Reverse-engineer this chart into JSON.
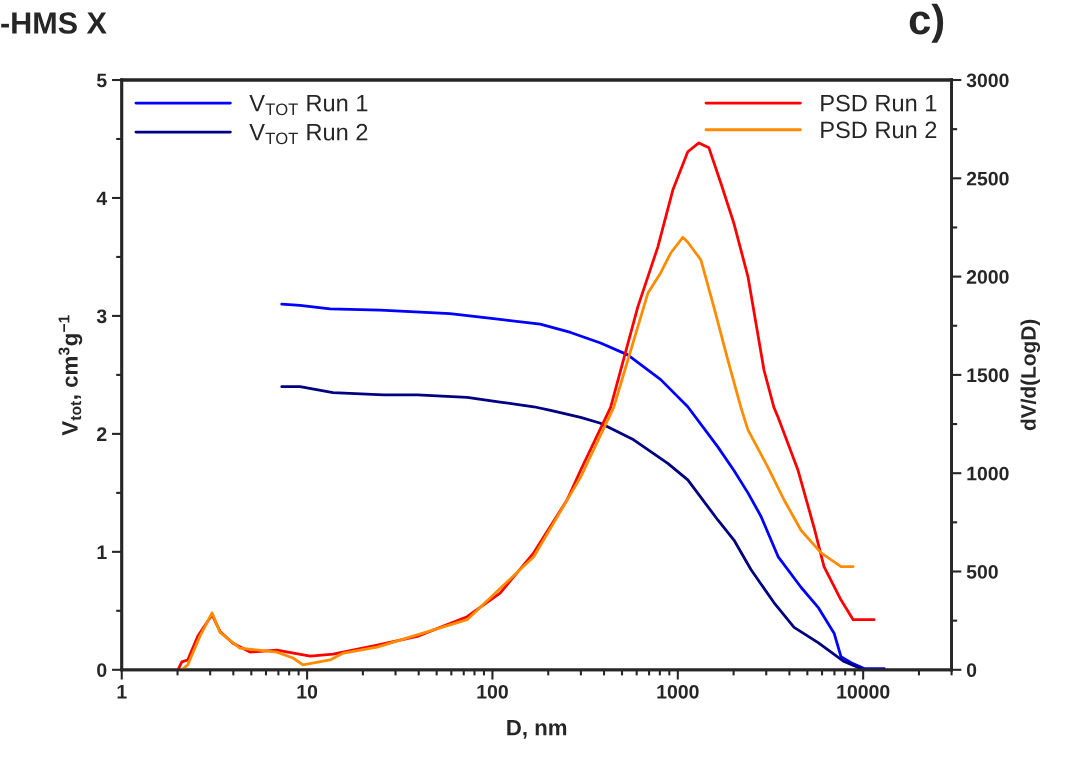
{
  "chart_data": {
    "type": "line",
    "title": "-HMS X",
    "annotations": [
      "c)"
    ],
    "xlabel": "D, nm",
    "ylabel": "V$_{tot}$, cm$^{3}$g$^{−1}$",
    "y2label": "dV/d(LogD)",
    "log": "x",
    "xlim": [
      1,
      30000
    ],
    "xticks": [
      1,
      10,
      100,
      1000,
      10000
    ],
    "ylim": [
      0,
      5
    ],
    "yticks": [
      0,
      1,
      2,
      3,
      4,
      5
    ],
    "y2lim": [
      0,
      3000
    ],
    "y2ticks": [
      0,
      500,
      1000,
      1500,
      2000,
      2500,
      3000
    ],
    "grid": false,
    "legend": "top left",
    "marker": "none",
    "line_style": "solid",
    "series": [
      {
        "name": "V$_{TOT}$ Run 1",
        "color": "#0000ff",
        "x": [
          7.3,
          9.15,
          13.3,
          24.9,
          59,
          110,
          181,
          264,
          383,
          537,
          809,
          1132,
          1644,
          2009,
          2390,
          2813,
          3475,
          4620,
          5714,
          6970,
          7600,
          8610,
          10120,
          13000
        ],
        "values": [
          3.1,
          3.09,
          3.06,
          3.05,
          3.02,
          2.97,
          2.93,
          2.86,
          2.77,
          2.67,
          2.46,
          2.23,
          1.89,
          1.69,
          1.5,
          1.3,
          0.96,
          0.7,
          0.53,
          0.31,
          0.11,
          0.06,
          0.01,
          0.01
        ]
      },
      {
        "name": "V$_{TOT}$ Run 2",
        "color": "#000080",
        "x": [
          7.3,
          9.15,
          13.8,
          25.8,
          39.3,
          73,
          110,
          167,
          206,
          299,
          383,
          578,
          883,
          1132,
          1644,
          2009,
          2480,
          3300,
          4240,
          5714,
          7890,
          9750
        ],
        "values": [
          2.4,
          2.4,
          2.35,
          2.33,
          2.33,
          2.31,
          2.27,
          2.23,
          2.2,
          2.14,
          2.09,
          1.95,
          1.75,
          1.61,
          1.27,
          1.1,
          0.85,
          0.57,
          0.36,
          0.23,
          0.07,
          0.01
        ]
      },
      {
        "name": "PSD Run 1",
        "color": "#ff0000",
        "axis": "y2",
        "x": [
          2.01,
          2.11,
          2.27,
          2.57,
          3.07,
          3.39,
          3.98,
          4.92,
          6.87,
          10.4,
          13.8,
          23.9,
          39.3,
          73,
          110,
          167,
          253,
          299,
          434,
          608,
          780,
          940,
          1132,
          1300,
          1472,
          1708,
          2009,
          2390,
          2917,
          3300,
          3475,
          4454,
          5430,
          6150,
          7600,
          8830,
          11470
        ],
        "values": [
          0,
          40,
          50,
          170,
          280,
          195,
          135,
          90,
          100,
          70,
          80,
          125,
          170,
          270,
          390,
          595,
          865,
          1015,
          1335,
          1845,
          2150,
          2440,
          2635,
          2680,
          2655,
          2475,
          2270,
          2000,
          1525,
          1335,
          1285,
          1015,
          725,
          525,
          355,
          255,
          255
        ]
      },
      {
        "name": "PSD Run 2",
        "color": "#ff8c00",
        "axis": "y2",
        "x": [
          2.11,
          2.27,
          2.64,
          3.07,
          3.39,
          4.34,
          6.87,
          8.4,
          9.5,
          13.3,
          15.7,
          23.9,
          73,
          167,
          299,
          451,
          689,
          809,
          916,
          1064,
          1132,
          1332,
          1566,
          1863,
          2190,
          2390,
          3065,
          3740,
          4620,
          5930,
          7600,
          8830
        ],
        "values": [
          0,
          25,
          170,
          290,
          190,
          110,
          90,
          60,
          25,
          50,
          85,
          115,
          255,
          575,
          980,
          1335,
          1915,
          2020,
          2120,
          2200,
          2175,
          2085,
          1845,
          1575,
          1335,
          1220,
          1030,
          865,
          710,
          595,
          525,
          525
        ]
      }
    ]
  }
}
